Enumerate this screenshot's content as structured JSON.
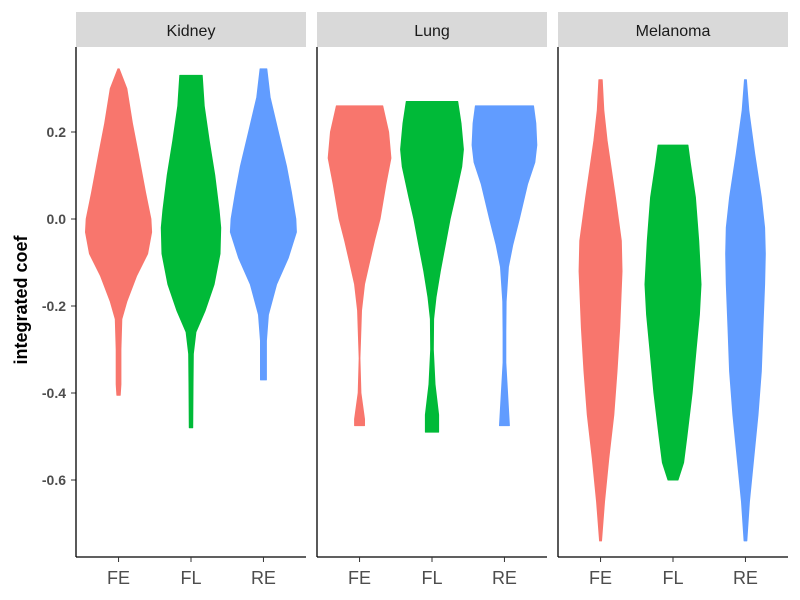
{
  "chart_data": {
    "type": "violin",
    "ylabel": "integrated coef",
    "xlabel": "",
    "ylim": [
      -0.77,
      0.405
    ],
    "y_ticks": [
      {
        "value": 0.2,
        "label": "0.2"
      },
      {
        "value": 0.0,
        "label": "0.0"
      },
      {
        "value": -0.2,
        "label": "-0.2"
      },
      {
        "value": -0.4,
        "label": "-0.4"
      },
      {
        "value": -0.6,
        "label": "-0.6"
      }
    ],
    "categories": [
      "FE",
      "FL",
      "RE"
    ],
    "colors": {
      "FE": "#F8766D",
      "FL": "#00BA38",
      "RE": "#619CFF"
    },
    "panels": [
      {
        "name": "Kidney",
        "violins": [
          {
            "group": "FE",
            "min": -0.405,
            "max": 0.345,
            "profile": [
              [
                0.345,
                0.02
              ],
              [
                0.3,
                0.25
              ],
              [
                0.22,
                0.42
              ],
              [
                0.15,
                0.6
              ],
              [
                0.06,
                0.82
              ],
              [
                0.0,
                0.98
              ],
              [
                -0.03,
                1.0
              ],
              [
                -0.08,
                0.88
              ],
              [
                -0.13,
                0.55
              ],
              [
                -0.19,
                0.25
              ],
              [
                -0.23,
                0.1
              ],
              [
                -0.3,
                0.07
              ],
              [
                -0.38,
                0.07
              ],
              [
                -0.405,
                0.05
              ]
            ]
          },
          {
            "group": "FL",
            "min": -0.48,
            "max": 0.33,
            "profile": [
              [
                0.33,
                0.34
              ],
              [
                0.26,
                0.4
              ],
              [
                0.18,
                0.55
              ],
              [
                0.1,
                0.72
              ],
              [
                0.02,
                0.85
              ],
              [
                -0.02,
                0.9
              ],
              [
                -0.08,
                0.88
              ],
              [
                -0.15,
                0.7
              ],
              [
                -0.21,
                0.43
              ],
              [
                -0.26,
                0.15
              ],
              [
                -0.31,
                0.07
              ],
              [
                -0.38,
                0.06
              ],
              [
                -0.48,
                0.05
              ]
            ]
          },
          {
            "group": "RE",
            "min": -0.37,
            "max": 0.345,
            "profile": [
              [
                0.345,
                0.1
              ],
              [
                0.28,
                0.2
              ],
              [
                0.2,
                0.45
              ],
              [
                0.12,
                0.7
              ],
              [
                0.06,
                0.85
              ],
              [
                0.0,
                0.98
              ],
              [
                -0.03,
                1.0
              ],
              [
                -0.09,
                0.75
              ],
              [
                -0.15,
                0.4
              ],
              [
                -0.22,
                0.15
              ],
              [
                -0.28,
                0.09
              ],
              [
                -0.37,
                0.09
              ]
            ]
          }
        ]
      },
      {
        "name": "Lung",
        "violins": [
          {
            "group": "FE",
            "min": -0.475,
            "max": 0.26,
            "profile": [
              [
                0.26,
                0.7
              ],
              [
                0.2,
                0.88
              ],
              [
                0.14,
                0.95
              ],
              [
                0.08,
                0.8
              ],
              [
                0.0,
                0.62
              ],
              [
                -0.05,
                0.45
              ],
              [
                -0.1,
                0.3
              ],
              [
                -0.15,
                0.15
              ],
              [
                -0.21,
                0.06
              ],
              [
                -0.28,
                0.03
              ],
              [
                -0.32,
                0.01
              ],
              [
                -0.4,
                0.04
              ],
              [
                -0.46,
                0.15
              ],
              [
                -0.475,
                0.15
              ]
            ]
          },
          {
            "group": "FL",
            "min": -0.49,
            "max": 0.27,
            "profile": [
              [
                0.27,
                0.78
              ],
              [
                0.22,
                0.88
              ],
              [
                0.16,
                0.95
              ],
              [
                0.12,
                0.9
              ],
              [
                0.05,
                0.7
              ],
              [
                0.0,
                0.55
              ],
              [
                -0.06,
                0.4
              ],
              [
                -0.12,
                0.25
              ],
              [
                -0.18,
                0.12
              ],
              [
                -0.23,
                0.05
              ],
              [
                -0.3,
                0.04
              ],
              [
                -0.38,
                0.09
              ],
              [
                -0.45,
                0.2
              ],
              [
                -0.49,
                0.2
              ]
            ]
          },
          {
            "group": "RE",
            "min": -0.475,
            "max": 0.26,
            "profile": [
              [
                0.26,
                0.88
              ],
              [
                0.22,
                0.95
              ],
              [
                0.17,
                0.98
              ],
              [
                0.13,
                0.92
              ],
              [
                0.08,
                0.7
              ],
              [
                0.0,
                0.45
              ],
              [
                -0.06,
                0.25
              ],
              [
                -0.11,
                0.12
              ],
              [
                -0.19,
                0.05
              ],
              [
                -0.26,
                0.04
              ],
              [
                -0.33,
                0.04
              ],
              [
                -0.41,
                0.1
              ],
              [
                -0.475,
                0.15
              ]
            ]
          }
        ]
      },
      {
        "name": "Melanoma",
        "violins": [
          {
            "group": "FE",
            "min": -0.74,
            "max": 0.32,
            "profile": [
              [
                0.32,
                0.05
              ],
              [
                0.25,
                0.1
              ],
              [
                0.18,
                0.2
              ],
              [
                0.05,
                0.45
              ],
              [
                -0.05,
                0.63
              ],
              [
                -0.12,
                0.65
              ],
              [
                -0.25,
                0.58
              ],
              [
                -0.35,
                0.5
              ],
              [
                -0.45,
                0.4
              ],
              [
                -0.55,
                0.25
              ],
              [
                -0.65,
                0.12
              ],
              [
                -0.74,
                0.03
              ]
            ]
          },
          {
            "group": "FL",
            "min": -0.6,
            "max": 0.17,
            "profile": [
              [
                0.17,
                0.45
              ],
              [
                0.13,
                0.52
              ],
              [
                0.05,
                0.68
              ],
              [
                -0.05,
                0.78
              ],
              [
                -0.15,
                0.85
              ],
              [
                -0.22,
                0.8
              ],
              [
                -0.3,
                0.7
              ],
              [
                -0.4,
                0.58
              ],
              [
                -0.5,
                0.42
              ],
              [
                -0.56,
                0.32
              ],
              [
                -0.6,
                0.15
              ]
            ]
          },
          {
            "group": "RE",
            "min": -0.74,
            "max": 0.32,
            "profile": [
              [
                0.32,
                0.03
              ],
              [
                0.25,
                0.1
              ],
              [
                0.15,
                0.28
              ],
              [
                0.05,
                0.48
              ],
              [
                -0.02,
                0.58
              ],
              [
                -0.08,
                0.6
              ],
              [
                -0.15,
                0.58
              ],
              [
                -0.25,
                0.53
              ],
              [
                -0.35,
                0.48
              ],
              [
                -0.45,
                0.38
              ],
              [
                -0.55,
                0.25
              ],
              [
                -0.65,
                0.12
              ],
              [
                -0.74,
                0.04
              ]
            ]
          }
        ]
      }
    ]
  }
}
